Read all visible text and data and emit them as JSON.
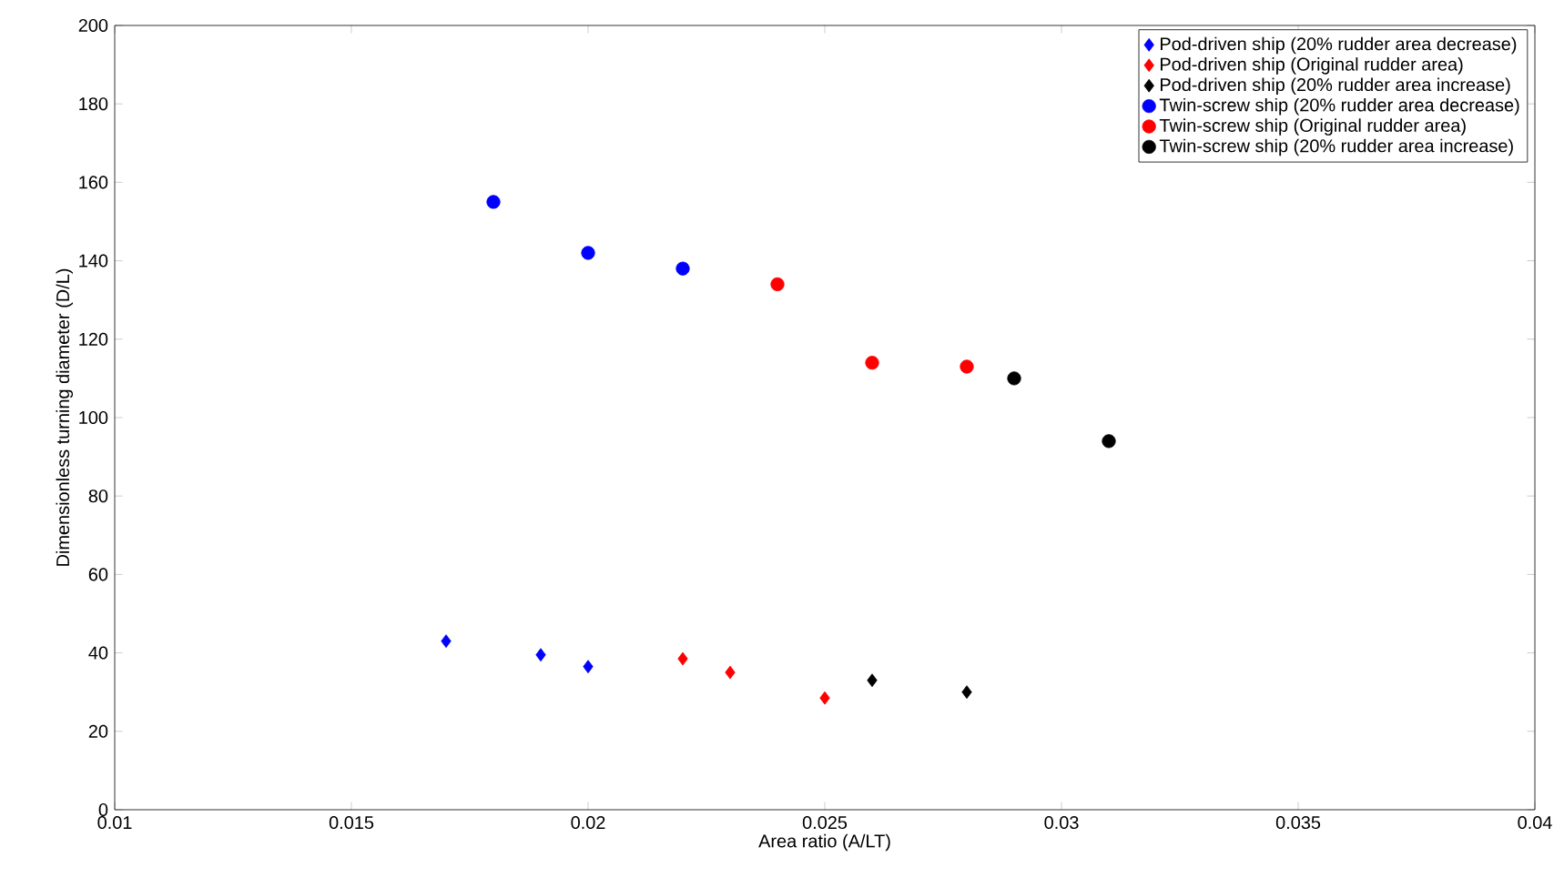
{
  "chart_data": {
    "type": "scatter",
    "xlabel": "Area ratio (A/LT)",
    "ylabel": "Dimensionless turning diameter (D/L)",
    "xlim": [
      0.01,
      0.04
    ],
    "xticks": [
      0.01,
      0.015,
      0.02,
      0.025,
      0.03,
      0.035,
      0.04
    ],
    "ylim": [
      0,
      200
    ],
    "yticks": [
      0,
      20,
      40,
      60,
      80,
      100,
      120,
      140,
      160,
      180,
      200
    ],
    "grid": false,
    "legend": "top right",
    "series": [
      {
        "name": "Pod-driven ship (20% rudder area decrease)",
        "color": "#0000ff",
        "marker": "diamond",
        "x": [
          0.017,
          0.019,
          0.02
        ],
        "values": [
          43,
          39.5,
          36.5
        ]
      },
      {
        "name": "Pod-driven ship (Original rudder area)",
        "color": "#ff0000",
        "marker": "diamond",
        "x": [
          0.022,
          0.023,
          0.025
        ],
        "values": [
          38.5,
          35,
          28.5
        ]
      },
      {
        "name": "Pod-driven ship (20% rudder area increase)",
        "color": "#000000",
        "marker": "diamond",
        "x": [
          0.026,
          0.028
        ],
        "values": [
          33,
          30
        ]
      },
      {
        "name": "Twin-screw ship (20% rudder area decrease)",
        "color": "#0000ff",
        "marker": "circle",
        "x": [
          0.018,
          0.02,
          0.022
        ],
        "values": [
          155,
          142,
          138
        ]
      },
      {
        "name": "Twin-screw ship (Original rudder area)",
        "color": "#ff0000",
        "marker": "circle",
        "x": [
          0.024,
          0.026,
          0.028
        ],
        "values": [
          134,
          114,
          113
        ]
      },
      {
        "name": "Twin-screw ship (20% rudder area increase)",
        "color": "#000000",
        "marker": "circle",
        "x": [
          0.029,
          0.031
        ],
        "values": [
          110,
          94
        ]
      }
    ]
  }
}
